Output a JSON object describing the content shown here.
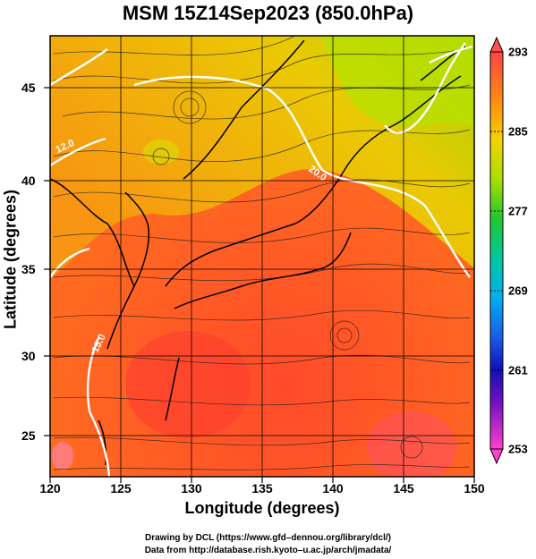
{
  "title": "MSM 15Z14Sep2023 (850.0hPa)",
  "xlabel": "Longitude (degrees)",
  "ylabel": "Latitude  (degrees)",
  "xticks": [
    "120",
    "125",
    "130",
    "135",
    "140",
    "145",
    "150"
  ],
  "yticks": [
    "45",
    "40",
    "35",
    "30",
    "25"
  ],
  "colorbar": {
    "ticks": [
      "293",
      "285",
      "277",
      "269",
      "261",
      "253"
    ],
    "colors": [
      "#ff4444",
      "#ff7a1a",
      "#f7b400",
      "#d8e600",
      "#7cdc00",
      "#20c830",
      "#00c8a8",
      "#00b8e8",
      "#1a6ae8",
      "#1818c8",
      "#6010c0",
      "#c010c0",
      "#ff40d0"
    ]
  },
  "contour_labels": [
    "12.0",
    "20.0",
    "15.0"
  ],
  "credits": {
    "line1": "Drawing by DCL (https://www.gfd–dennou.org/library/dcl/)",
    "line2": "Data from http://database.rish.kyoto–u.ac.jp/arch/jmadata/"
  }
}
